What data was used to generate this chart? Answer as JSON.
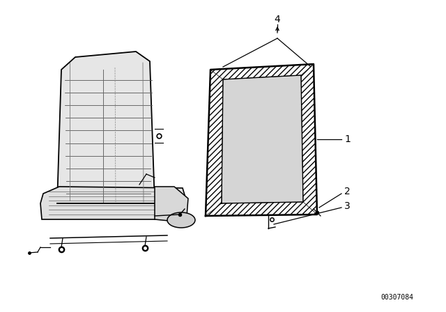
{
  "background_color": "#ffffff",
  "watermark_text": "00307084",
  "watermark_fontsize": 7
}
